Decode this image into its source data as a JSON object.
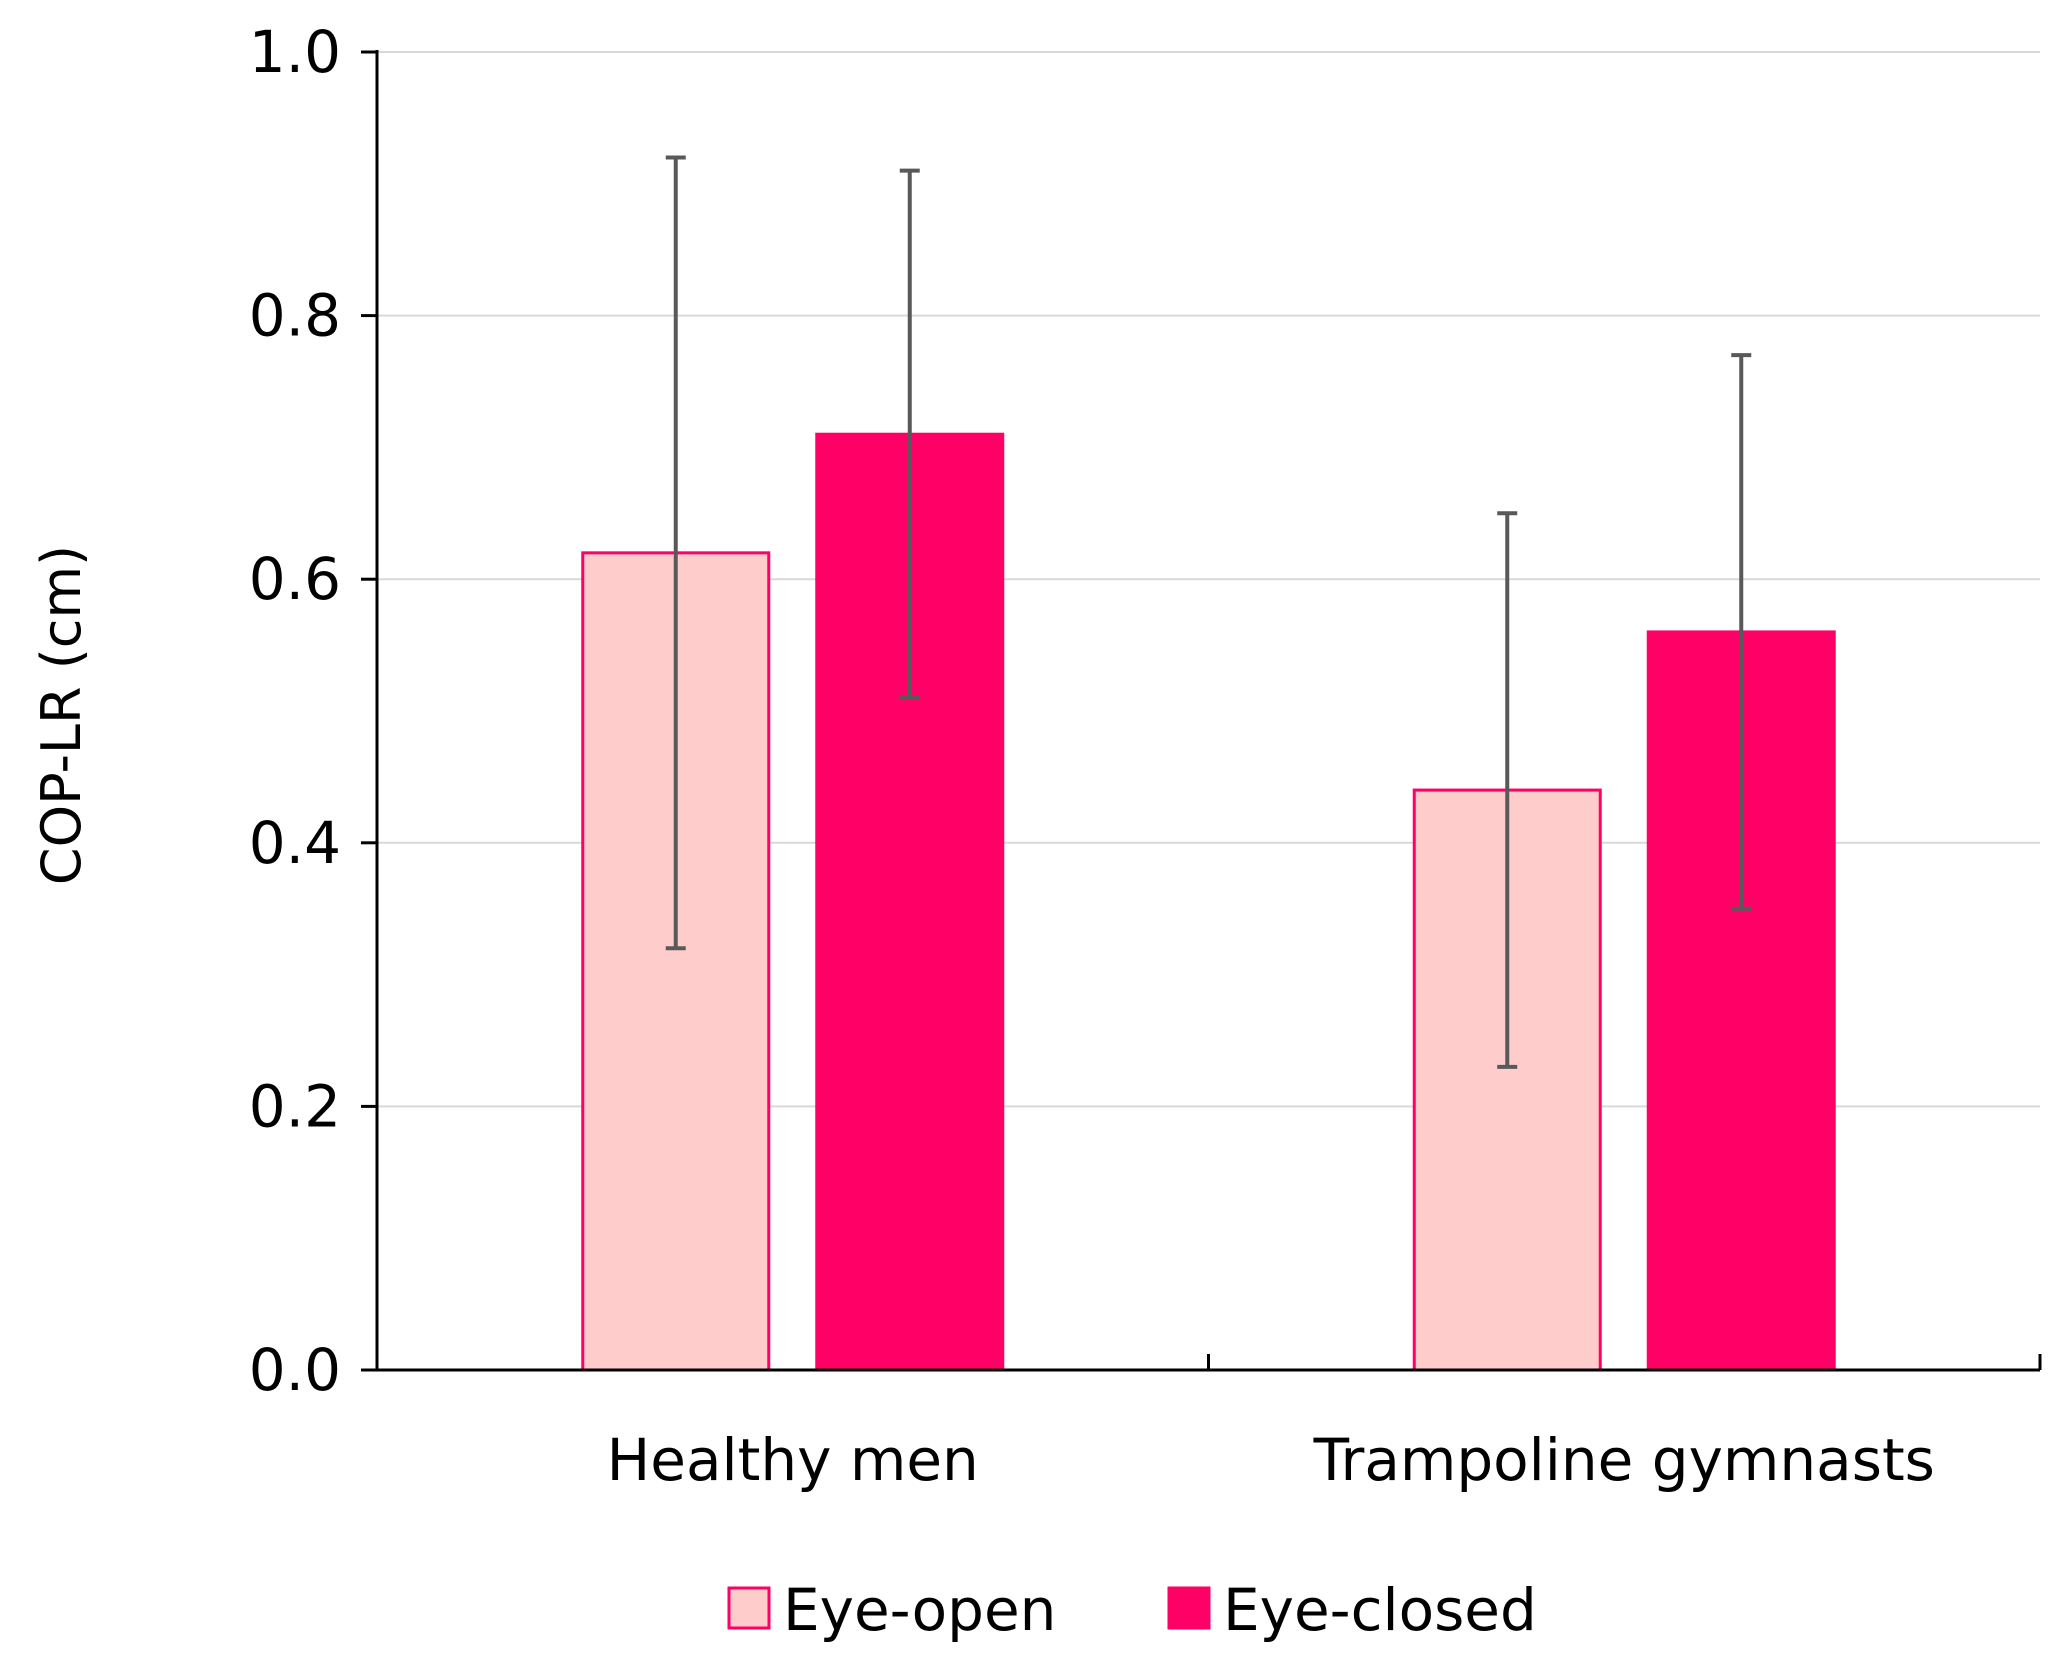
{
  "chart_data": {
    "type": "bar",
    "title": "",
    "xlabel": "",
    "ylabel": "COP-LR (cm)",
    "ylim": [
      0,
      1.0
    ],
    "yticks": [
      0.0,
      0.2,
      0.4,
      0.6,
      0.8,
      1.0
    ],
    "ytick_labels": [
      "0.0",
      "0.2",
      "0.4",
      "0.6",
      "0.8",
      "1.0"
    ],
    "grid": true,
    "legend_position": "bottom-center",
    "categories": [
      "Healthy men",
      "Trampoline gymnasts"
    ],
    "series": [
      {
        "name": "Eye-open",
        "values": [
          0.62,
          0.44
        ],
        "error_low": [
          0.32,
          0.23
        ],
        "error_high": [
          0.92,
          0.65
        ],
        "fill": "#FFCCCC",
        "stroke": "#FF0066"
      },
      {
        "name": "Eye-closed",
        "values": [
          0.71,
          0.56
        ],
        "error_low": [
          0.51,
          0.35
        ],
        "error_high": [
          0.91,
          0.77
        ],
        "fill": "#FF0066",
        "stroke": "#FF0066"
      }
    ]
  },
  "colors": {
    "axis": "#000000",
    "grid": "#D9D9D9",
    "error_bar": "#595959"
  }
}
